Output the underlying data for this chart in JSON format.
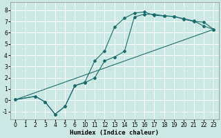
{
  "xlabel": "Humidex (Indice chaleur)",
  "bg_color": "#cce8e4",
  "line_color": "#1a6b6b",
  "grid_color": "#ffffff",
  "xlim": [
    -0.5,
    23.5
  ],
  "ylim": [
    -1.7,
    8.7
  ],
  "xticks": [
    0,
    1,
    2,
    3,
    4,
    5,
    6,
    10,
    11,
    12,
    13,
    14,
    15,
    16,
    17,
    18,
    19,
    20,
    21,
    22,
    23
  ],
  "yticks": [
    -1,
    0,
    1,
    2,
    3,
    4,
    5,
    6,
    7,
    8
  ],
  "curve1_x": [
    0,
    2,
    3,
    4,
    5,
    6,
    10,
    11,
    12,
    13,
    14,
    15,
    16,
    17,
    18,
    19,
    20,
    21,
    22,
    23
  ],
  "curve1_y": [
    0.05,
    0.35,
    -0.15,
    -1.25,
    -0.55,
    1.3,
    1.6,
    3.5,
    4.4,
    6.5,
    7.3,
    7.75,
    7.85,
    7.55,
    7.5,
    7.45,
    7.25,
    7.05,
    6.6,
    6.3
  ],
  "curve2_x": [
    0,
    2,
    3,
    4,
    5,
    6,
    10,
    11,
    12,
    13,
    14,
    15,
    16,
    17,
    18,
    19,
    20,
    21,
    22,
    23
  ],
  "curve2_y": [
    0.05,
    0.35,
    -0.15,
    -1.25,
    -0.55,
    1.3,
    1.55,
    2.0,
    3.5,
    3.85,
    4.35,
    7.4,
    7.65,
    7.65,
    7.5,
    7.45,
    7.2,
    7.0,
    6.95,
    6.3
  ],
  "line_x": [
    0,
    23
  ],
  "line_y": [
    0.05,
    6.3
  ],
  "marker_size": 2.0,
  "linewidth": 0.8,
  "fontsize_label": 6.5,
  "fontsize_tick": 5.5
}
